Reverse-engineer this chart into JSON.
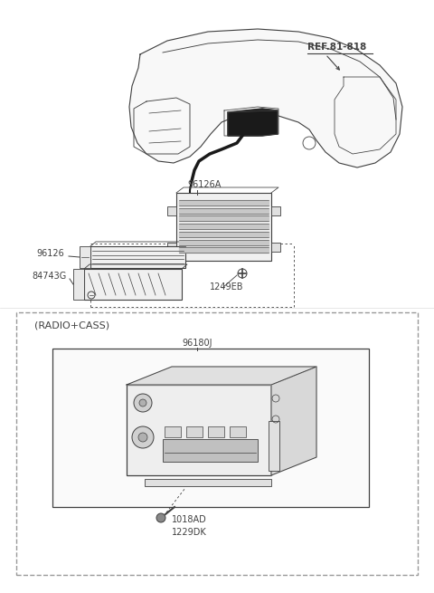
{
  "bg_color": "#ffffff",
  "line_color": "#404040",
  "ref_color": "#404040",
  "dashed_box_color": "#999999",
  "labels": {
    "ref": "REF.81-818",
    "l96126a": "96126A",
    "l96126": "96126",
    "l84743g": "84743G",
    "l1249eb": "1249EB",
    "radio_cass": "(RADIO+CASS)",
    "l96180j": "96180J",
    "l1018ad": "1018AD",
    "l1229dk": "1229DK"
  },
  "fs_label": 7.0,
  "fs_ref": 7.5,
  "fs_radiocass": 8.0
}
